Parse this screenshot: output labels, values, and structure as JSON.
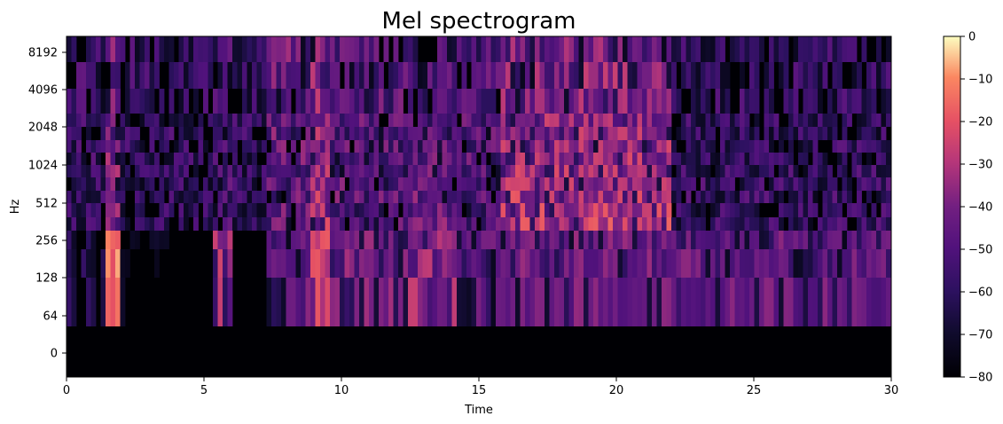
{
  "chart_data": {
    "type": "heatmap",
    "title": "Mel spectrogram",
    "xlabel": "Time",
    "ylabel": "Hz",
    "x_range": [
      0,
      30
    ],
    "x_ticks": [
      0,
      5,
      10,
      15,
      20,
      25,
      30
    ],
    "y_scale": "symlog (mel)",
    "y_ticks": [
      "0",
      "64",
      "128",
      "256",
      "512",
      "1024",
      "2048",
      "4096",
      "8192"
    ],
    "colormap": "magma",
    "colorbar": {
      "range": [
        -80,
        0
      ],
      "ticks": [
        0,
        -10,
        -20,
        -30,
        -40,
        -50,
        -60,
        -70,
        -80
      ]
    },
    "grid": false,
    "segments": [
      {
        "start": 0.0,
        "end": 1.5,
        "level": -62,
        "bass_level": -65,
        "top_energy": -55
      },
      {
        "start": 1.5,
        "end": 2.0,
        "level": -35,
        "bass_level": -15,
        "top_energy": -45
      },
      {
        "start": 2.0,
        "end": 5.3,
        "level": -62,
        "bass_level": -78,
        "top_energy": -58
      },
      {
        "start": 5.3,
        "end": 6.0,
        "level": -52,
        "bass_level": -32,
        "top_energy": -55
      },
      {
        "start": 6.0,
        "end": 7.2,
        "level": -62,
        "bass_level": -76,
        "top_energy": -58
      },
      {
        "start": 7.2,
        "end": 8.8,
        "level": -48,
        "bass_level": -45,
        "top_energy": -45
      },
      {
        "start": 8.8,
        "end": 9.5,
        "level": -30,
        "bass_level": -25,
        "top_energy": -40
      },
      {
        "start": 9.5,
        "end": 12.5,
        "level": -45,
        "bass_level": -40,
        "top_energy": -50
      },
      {
        "start": 12.5,
        "end": 14.2,
        "level": -42,
        "bass_level": -35,
        "top_energy": -50
      },
      {
        "start": 14.2,
        "end": 15.8,
        "level": -50,
        "bass_level": -45,
        "top_energy": -50
      },
      {
        "start": 15.8,
        "end": 22.0,
        "level": -25,
        "bass_level": -42,
        "top_energy": -40
      },
      {
        "start": 22.0,
        "end": 30.0,
        "level": -55,
        "bass_level": -45,
        "top_energy": -60
      }
    ]
  }
}
